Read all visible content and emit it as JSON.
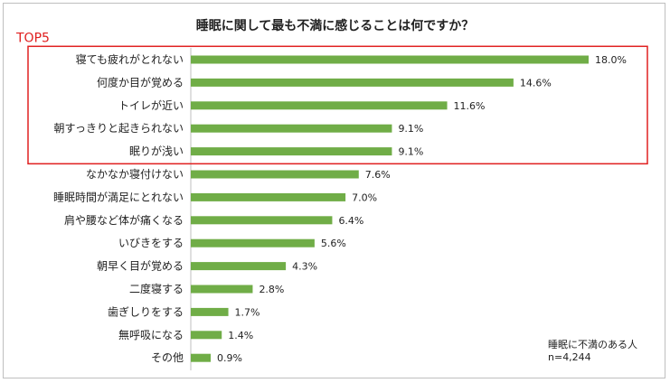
{
  "chart_data": {
    "type": "bar",
    "orientation": "horizontal",
    "title": "睡眠に関して最も不満に感じることは何ですか？",
    "categories": [
      "寝ても疲れがとれない",
      "何度か目が覚める",
      "トイレが近い",
      "朝すっきりと起きられない",
      "眠りが浅い",
      "なかなか寝付けない",
      "睡眠時間が満足にとれない",
      "肩や腰など体が痛くなる",
      "いびきをする",
      "朝早く目が覚める",
      "二度寝する",
      "歯ぎしりをする",
      "無呼吸になる",
      "その他"
    ],
    "values": [
      18.0,
      14.6,
      11.6,
      9.1,
      9.1,
      7.6,
      7.0,
      6.4,
      5.6,
      4.3,
      2.8,
      1.7,
      1.4,
      0.9
    ],
    "value_labels": [
      "18.0%",
      "14.6%",
      "11.6%",
      "9.1%",
      "9.1%",
      "7.6%",
      "7.0%",
      "6.4%",
      "5.6%",
      "4.3%",
      "2.8%",
      "1.7%",
      "1.4%",
      "0.9%"
    ],
    "bar_color": "#70ad47",
    "highlight": {
      "label": "TOP5",
      "count": 5,
      "color": "#e02020"
    },
    "grid": false,
    "legend": "none"
  },
  "notes": {
    "line1": "睡眠に不満のある人",
    "line2": "n=4,244"
  }
}
